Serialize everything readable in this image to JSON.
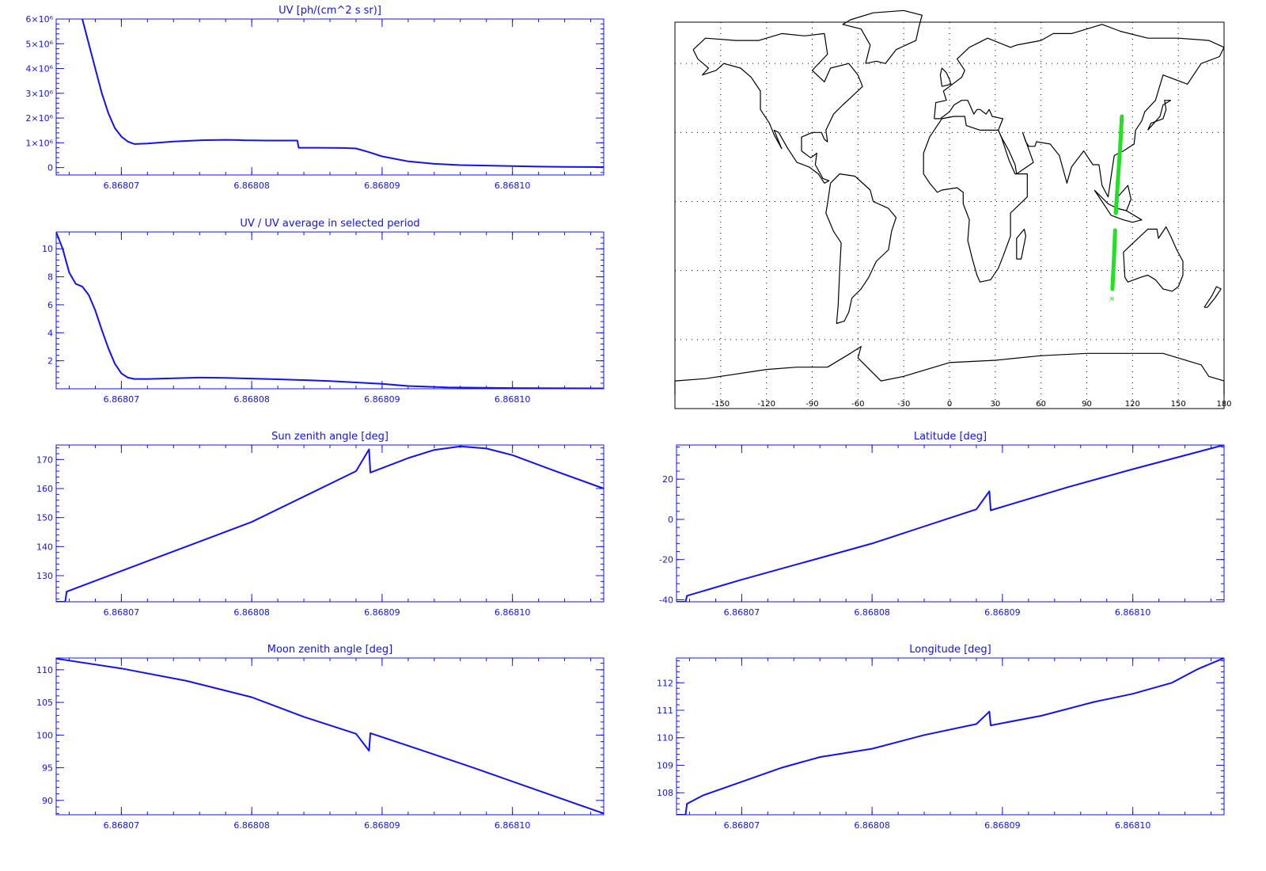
{
  "colors": {
    "axis": "#1010ff",
    "series": "#1010ff",
    "track": "#22e022",
    "map_lines": "#000000",
    "grid": "#000000"
  },
  "chart_data": [
    {
      "id": "uv",
      "type": "line",
      "title": "UV [ph/(cm^2 s sr)]",
      "xlabel": "",
      "ylabel": "",
      "xlim": [
        6.868065,
        6.868107
      ],
      "ylim": [
        -300000,
        6000000
      ],
      "xticks": [
        6.86807,
        6.86808,
        6.86809,
        6.8681
      ],
      "xtick_labels": [
        "6.86807",
        "6.86808",
        "6.86809",
        "6.86810"
      ],
      "yticks": [
        0,
        1000000,
        2000000,
        3000000,
        4000000,
        5000000,
        6000000
      ],
      "ytick_labels": [
        "0",
        "1×10⁶",
        "2×10⁶",
        "3×10⁶",
        "4×10⁶",
        "5×10⁶",
        "6×10⁶"
      ],
      "series": [
        {
          "x": [
            6.868067,
            6.8680675,
            6.868068,
            6.8680685,
            6.868069,
            6.8680695,
            6.86807,
            6.8680705,
            6.868071,
            6.868072,
            6.868074,
            6.868076,
            6.868078,
            6.868079,
            6.8680795,
            6.86808,
            6.868081,
            6.868082,
            6.8680835,
            6.8680836,
            6.868085,
            6.868087,
            6.868088,
            6.868089,
            6.86809,
            6.868092,
            6.868094,
            6.868096,
            6.868098,
            6.8681,
            6.868102,
            6.868104,
            6.868107
          ],
          "y": [
            6000000,
            5000000,
            4000000,
            3000000,
            2200000,
            1600000,
            1250000,
            1050000,
            950000,
            970000,
            1050000,
            1100000,
            1120000,
            1110000,
            1100000,
            1100000,
            1090000,
            1090000,
            1090000,
            800000,
            800000,
            790000,
            770000,
            620000,
            450000,
            250000,
            150000,
            100000,
            80000,
            60000,
            40000,
            30000,
            20000
          ]
        }
      ]
    },
    {
      "id": "uvavg",
      "type": "line",
      "title": "UV / UV average in selected period",
      "xlabel": "",
      "ylabel": "",
      "xlim": [
        6.868065,
        6.868107
      ],
      "ylim": [
        0,
        11.2
      ],
      "xticks": [
        6.86807,
        6.86808,
        6.86809,
        6.8681
      ],
      "xtick_labels": [
        "6.86807",
        "6.86808",
        "6.86809",
        "6.86810"
      ],
      "yticks": [
        2,
        4,
        6,
        8,
        10
      ],
      "ytick_labels": [
        "2",
        "4",
        "6",
        "8",
        "10"
      ],
      "series": [
        {
          "x": [
            6.868065,
            6.8680655,
            6.868066,
            6.8680665,
            6.868067,
            6.8680675,
            6.868068,
            6.8680685,
            6.868069,
            6.8680695,
            6.86807,
            6.8680705,
            6.868071,
            6.868072,
            6.868074,
            6.868076,
            6.868078,
            6.86808,
            6.868082,
            6.868084,
            6.868086,
            6.868088,
            6.86809,
            6.868092,
            6.868095,
            6.8681,
            6.868107
          ],
          "y": [
            11.2,
            10.0,
            8.3,
            7.5,
            7.3,
            6.7,
            5.6,
            4.2,
            2.9,
            1.8,
            1.1,
            0.8,
            0.7,
            0.7,
            0.75,
            0.8,
            0.78,
            0.73,
            0.68,
            0.62,
            0.55,
            0.45,
            0.35,
            0.2,
            0.1,
            0.05,
            0.03
          ]
        }
      ]
    },
    {
      "id": "sunz",
      "type": "line",
      "title": "Sun zenith angle [deg]",
      "xlabel": "",
      "ylabel": "",
      "xlim": [
        6.868065,
        6.868107
      ],
      "ylim": [
        121,
        175
      ],
      "xticks": [
        6.86807,
        6.86808,
        6.86809,
        6.8681
      ],
      "xtick_labels": [
        "6.86807",
        "6.86808",
        "6.86809",
        "6.86810"
      ],
      "yticks": [
        130,
        140,
        150,
        160,
        170
      ],
      "ytick_labels": [
        "130",
        "140",
        "150",
        "160",
        "170"
      ],
      "series": [
        {
          "x": [
            6.868065,
            6.8680657,
            6.8680658,
            6.868072,
            6.86808,
            6.868088,
            6.868089,
            6.8680891,
            6.868092,
            6.868094,
            6.868096,
            6.868098,
            6.8681,
            6.868103,
            6.868107
          ],
          "y": [
            121,
            121,
            124.5,
            135,
            148.5,
            166,
            173.5,
            165.5,
            170.5,
            173.3,
            174.5,
            173.8,
            171.5,
            166.5,
            160
          ]
        }
      ]
    },
    {
      "id": "lat",
      "type": "line",
      "title": "Latitude [deg]",
      "xlabel": "",
      "ylabel": "",
      "xlim": [
        6.868065,
        6.868107
      ],
      "ylim": [
        -41,
        37
      ],
      "xticks": [
        6.86807,
        6.86808,
        6.86809,
        6.8681
      ],
      "xtick_labels": [
        "6.86807",
        "6.86808",
        "6.86809",
        "6.86810"
      ],
      "yticks": [
        -40,
        -20,
        0,
        20
      ],
      "ytick_labels": [
        "-40",
        "-20",
        "0",
        "20"
      ],
      "series": [
        {
          "x": [
            6.868065,
            6.8680657,
            6.8680658,
            6.86807,
            6.86808,
            6.868088,
            6.868089,
            6.8680891,
            6.868095,
            6.8681,
            6.868107
          ],
          "y": [
            -41,
            -41,
            -38,
            -30,
            -12,
            5,
            14,
            4.5,
            16,
            25,
            37
          ]
        }
      ]
    },
    {
      "id": "moonz",
      "type": "line",
      "title": "Moon zenith angle [deg]",
      "xlabel": "",
      "ylabel": "",
      "xlim": [
        6.868065,
        6.868107
      ],
      "ylim": [
        87.8,
        111.8
      ],
      "xticks": [
        6.86807,
        6.86808,
        6.86809,
        6.8681
      ],
      "xtick_labels": [
        "6.86807",
        "6.86808",
        "6.86809",
        "6.86810"
      ],
      "yticks": [
        90,
        95,
        100,
        105,
        110
      ],
      "ytick_labels": [
        "90",
        "95",
        "100",
        "105",
        "110"
      ],
      "series": [
        {
          "x": [
            6.868065,
            6.86807,
            6.868075,
            6.86808,
            6.868084,
            6.868088,
            6.868089,
            6.8680891,
            6.868093,
            6.868097,
            6.868101,
            6.868105,
            6.868107
          ],
          "y": [
            111.7,
            110.2,
            108.3,
            105.8,
            102.8,
            100.2,
            97.6,
            100.3,
            97.7,
            95,
            92.2,
            89.4,
            88
          ]
        }
      ]
    },
    {
      "id": "lon",
      "type": "line",
      "title": "Longitude [deg]",
      "xlabel": "",
      "ylabel": "",
      "xlim": [
        6.868065,
        6.868107
      ],
      "ylim": [
        107.2,
        112.9
      ],
      "xticks": [
        6.86807,
        6.86808,
        6.86809,
        6.8681
      ],
      "xtick_labels": [
        "6.86807",
        "6.86808",
        "6.86809",
        "6.86810"
      ],
      "yticks": [
        108,
        109,
        110,
        111,
        112
      ],
      "ytick_labels": [
        "108",
        "109",
        "110",
        "111",
        "112"
      ],
      "series": [
        {
          "x": [
            6.868065,
            6.8680657,
            6.8680658,
            6.868067,
            6.86807,
            6.868073,
            6.868076,
            6.86808,
            6.868084,
            6.868088,
            6.868089,
            6.8680891,
            6.868093,
            6.868097,
            6.8681,
            6.868103,
            6.868105,
            6.868107
          ],
          "y": [
            107.2,
            107.2,
            107.6,
            107.9,
            108.4,
            108.9,
            109.3,
            109.6,
            110.1,
            110.5,
            110.95,
            110.45,
            110.8,
            111.3,
            111.6,
            112.0,
            112.5,
            112.9
          ]
        }
      ]
    },
    {
      "id": "map",
      "type": "scatter",
      "title": "",
      "xlim": [
        -180,
        180
      ],
      "ylim": [
        -90,
        90
      ],
      "xticks": [
        -150,
        -120,
        -90,
        -60,
        -30,
        0,
        30,
        60,
        90,
        120,
        150,
        180
      ],
      "xtick_labels": [
        "-150",
        "-120",
        "-90",
        "-60",
        "-30",
        "0",
        "30",
        "60",
        "90",
        "120",
        "150",
        "180"
      ],
      "grid_lats": [
        60,
        30,
        0,
        -30,
        -60
      ],
      "series": [
        {
          "x": [
            106.8,
            108.0,
            109.0,
            110.5,
            112.0,
            113.0
          ],
          "y": [
            -38,
            -22,
            -5,
            10,
            25,
            37
          ]
        }
      ],
      "marker": {
        "x": 106.5,
        "y": -40.5,
        "text": "×"
      }
    }
  ]
}
